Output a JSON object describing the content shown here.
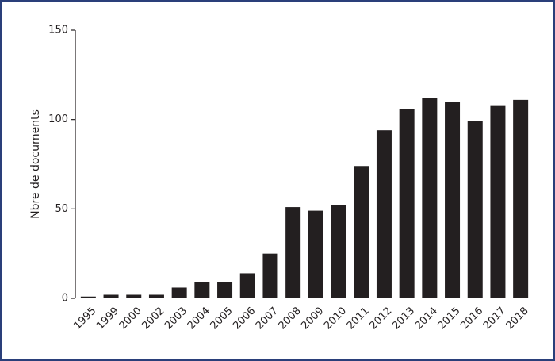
{
  "chart_data": {
    "type": "bar",
    "y_label": "Nbre de documents",
    "categories": [
      "1995",
      "1999",
      "2000",
      "2002",
      "2003",
      "2004",
      "2005",
      "2006",
      "2007",
      "2008",
      "2009",
      "2010",
      "2011",
      "2012",
      "2013",
      "2014",
      "2015",
      "2016",
      "2017",
      "2018"
    ],
    "values": [
      1,
      2,
      2,
      2,
      6,
      9,
      9,
      14,
      25,
      51,
      49,
      52,
      74,
      94,
      106,
      112,
      110,
      99,
      108,
      111
    ],
    "color": "#231f20",
    "ylim": [
      0,
      150
    ],
    "yticks": [
      0,
      50,
      100,
      150
    ],
    "grid": false
  }
}
